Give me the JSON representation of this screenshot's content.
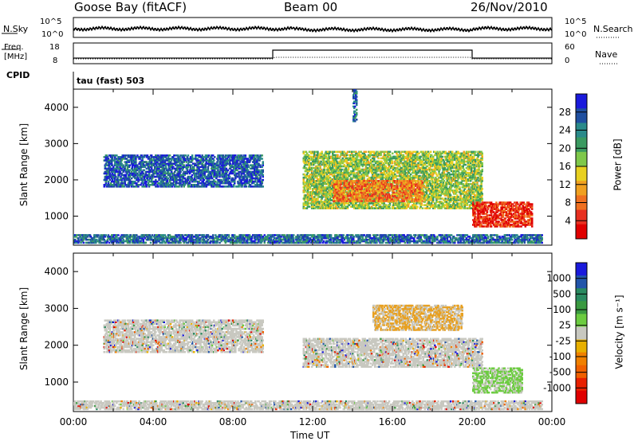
{
  "header": {
    "station": "Goose Bay (fitACF)",
    "beam": "Beam 00",
    "date": "26/Nov/2010"
  },
  "top_panels": {
    "nsky_label": "N.Sky",
    "nsky_ticks": [
      "10^5",
      "10^0"
    ],
    "nsearch_label": "N.Search",
    "nsearch_ticks": [
      "10^5",
      "10^0"
    ],
    "freq_label_1": "Freq.",
    "freq_label_2": "[MHz]",
    "freq_ticks": [
      "18",
      "8"
    ],
    "nave_label": "Nave",
    "nave_ticks": [
      "60",
      "0"
    ],
    "cpid_label": "CPID",
    "cpid_text": "tau (fast) 503"
  },
  "colors": {
    "power_scale": [
      "#1a1adc",
      "#1f4fa0",
      "#2a8a8a",
      "#3a9a60",
      "#7fc84a",
      "#e8d020",
      "#f0a020",
      "#f07020",
      "#e83020",
      "#e00000"
    ],
    "velocity_scale": [
      "#1a1adc",
      "#2255aa",
      "#2a8a60",
      "#3a9a40",
      "#6ccc40",
      "#c8c8c0",
      "#e8b000",
      "#f08000",
      "#f06000",
      "#e82000",
      "#e00000"
    ],
    "ground_scatter": "#a0a0a0"
  },
  "chart_data": [
    {
      "type": "heatmap",
      "name": "power",
      "ylabel": "Slant Range [km]",
      "yticks": [
        "4000",
        "3000",
        "2000",
        "1000"
      ],
      "ylim": [
        200,
        4500
      ],
      "xlim": [
        "00:00",
        "24:00"
      ],
      "colorbar_label": "Power [dB]",
      "colorbar_ticks": [
        "28",
        "24",
        "20",
        "16",
        "12",
        "8",
        "4"
      ],
      "colorbar_range": [
        0,
        30
      ],
      "regions": [
        {
          "t0": 0.0,
          "t1": 23.5,
          "r0": 250,
          "r1": 500,
          "level": 6
        },
        {
          "t0": 1.5,
          "t1": 9.5,
          "r0": 1800,
          "r1": 2700,
          "level": 5
        },
        {
          "t0": 11.5,
          "t1": 20.5,
          "r0": 1200,
          "r1": 2800,
          "level": 14
        },
        {
          "t0": 13.0,
          "t1": 17.5,
          "r0": 1400,
          "r1": 2000,
          "level": 22
        },
        {
          "t0": 20.0,
          "t1": 23.0,
          "r0": 700,
          "r1": 1400,
          "level": 26
        },
        {
          "t0": 14.0,
          "t1": 14.2,
          "r0": 3600,
          "r1": 4500,
          "level": 6
        }
      ]
    },
    {
      "type": "heatmap",
      "name": "velocity",
      "ylabel": "Slant Range [km]",
      "yticks": [
        "4000",
        "3000",
        "2000",
        "1000"
      ],
      "ylim": [
        200,
        4500
      ],
      "xlim": [
        "00:00",
        "24:00"
      ],
      "xticks": [
        "00:00",
        "04:00",
        "08:00",
        "12:00",
        "16:00",
        "20:00",
        "00:00"
      ],
      "xlabel": "Time UT",
      "colorbar_label": "Velocity [m s⁻¹]",
      "colorbar_ticks": [
        "1000",
        "500",
        "100",
        "25",
        "-25",
        "-100",
        "-500",
        "-1000"
      ],
      "colorbar_range": [
        -1000,
        1000
      ],
      "regions": [
        {
          "t0": 0.0,
          "t1": 23.5,
          "r0": 250,
          "r1": 500,
          "level": 0
        },
        {
          "t0": 1.5,
          "t1": 9.5,
          "r0": 1800,
          "r1": 2700,
          "level": 0
        },
        {
          "t0": 11.5,
          "t1": 20.5,
          "r0": 1400,
          "r1": 2200,
          "level": 0
        },
        {
          "t0": 15.0,
          "t1": 19.5,
          "r0": 2400,
          "r1": 3100,
          "level": -150
        },
        {
          "t0": 20.0,
          "t1": 22.5,
          "r0": 700,
          "r1": 1400,
          "level": 50
        }
      ]
    }
  ]
}
